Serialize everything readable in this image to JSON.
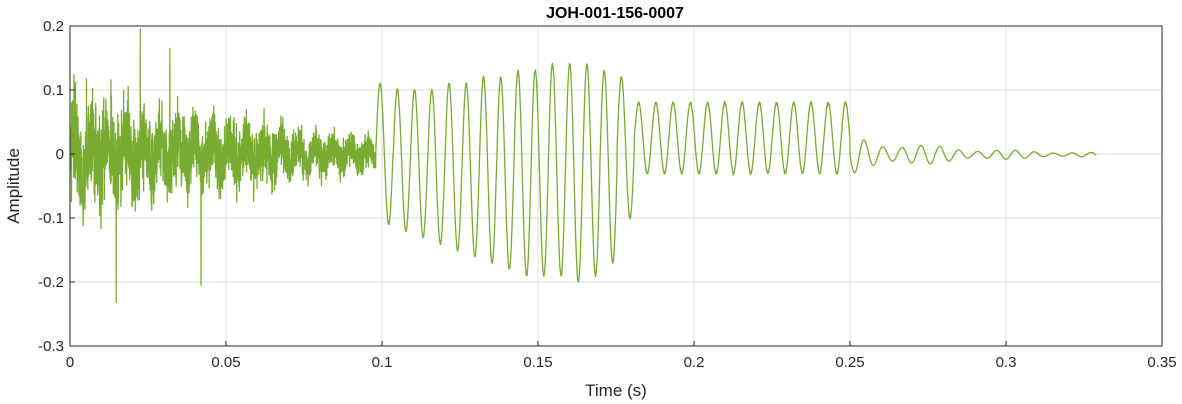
{
  "chart_data": {
    "type": "line",
    "title": "JOH-001-156-0007",
    "xlabel": "Time (s)",
    "ylabel": "Amplitude",
    "xlim": [
      0,
      0.35
    ],
    "ylim": [
      -0.3,
      0.2
    ],
    "x_ticks": [
      0,
      0.05,
      0.1,
      0.15,
      0.2,
      0.25,
      0.3,
      0.35
    ],
    "x_tick_labels": [
      "0",
      "0.05",
      "0.1",
      "0.15",
      "0.2",
      "0.25",
      "0.3",
      "0.35"
    ],
    "y_ticks": [
      -0.3,
      -0.2,
      -0.1,
      0,
      0.1,
      0.2
    ],
    "y_tick_labels": [
      "-0.3",
      "-0.2",
      "-0.1",
      "0",
      "0.1",
      "0.2"
    ],
    "grid": true,
    "line_color": "#77ac30",
    "series": [
      {
        "sample_end_s": 0.329,
        "segments": [
          {
            "t_start": 0.0,
            "t_end": 0.098,
            "kind": "noise",
            "envelope_start": 0.13,
            "envelope_end": 0.04
          },
          {
            "t_start": 0.098,
            "t_end": 0.25,
            "kind": "periodic",
            "freq_hz": 181,
            "peaks": [
              0.11,
              0.1,
              0.1,
              0.1,
              0.11,
              0.11,
              0.12,
              0.12,
              0.13,
              0.13,
              0.14,
              0.14,
              0.14,
              0.13,
              0.12,
              0.08
            ],
            "troughs": [
              -0.11,
              -0.12,
              -0.13,
              -0.14,
              -0.15,
              -0.16,
              -0.17,
              -0.18,
              -0.19,
              -0.19,
              -0.19,
              -0.2,
              -0.19,
              -0.17,
              -0.1,
              -0.03
            ]
          },
          {
            "t_start": 0.25,
            "t_end": 0.329,
            "kind": "decay",
            "freq_hz": 165,
            "amp_start": 0.03,
            "amp_end": 0.006
          }
        ],
        "extremes": [
          {
            "t": 0.0225,
            "y": 0.195
          },
          {
            "t": 0.0148,
            "y": -0.232
          },
          {
            "t": 0.032,
            "y": 0.165
          },
          {
            "t": 0.042,
            "y": -0.205
          }
        ]
      }
    ]
  }
}
